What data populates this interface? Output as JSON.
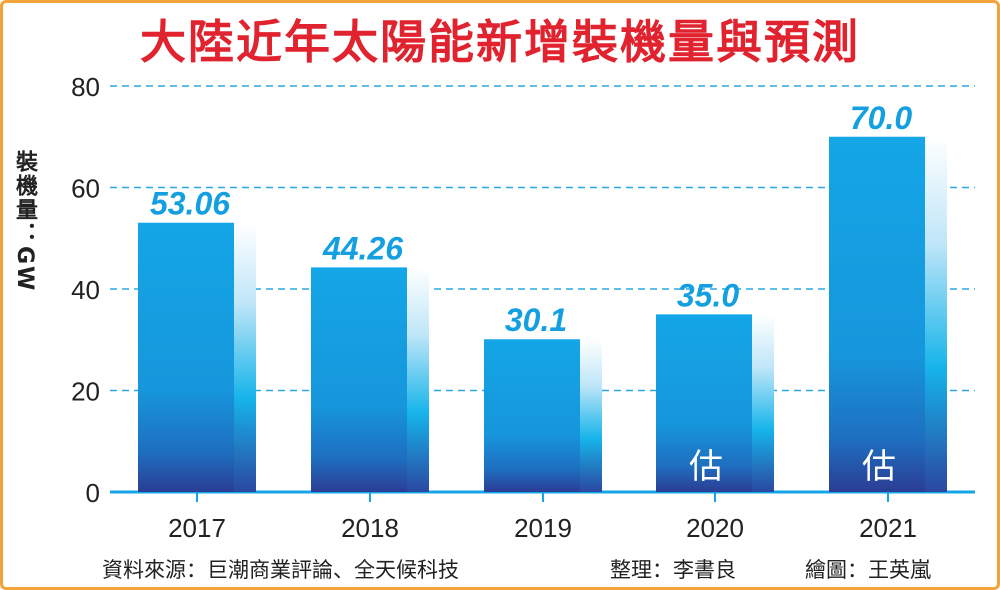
{
  "chart_data": {
    "type": "bar",
    "title": "大陸近年太陽能新增裝機量與預測",
    "ylabel": "裝機量：GW",
    "xlabel": "",
    "categories": [
      "2017",
      "2018",
      "2019",
      "2020",
      "2021"
    ],
    "values": [
      53.06,
      44.26,
      30.1,
      35.0,
      70.0
    ],
    "value_labels": [
      "53.06",
      "44.26",
      "30.1",
      "35.0",
      "70.0"
    ],
    "bar_notes": [
      "",
      "",
      "",
      "估",
      "估"
    ],
    "ylim": [
      0,
      80
    ],
    "yticks": [
      "0",
      "20",
      "40",
      "60",
      "80"
    ],
    "grid": true,
    "legend": "none",
    "colors": {
      "bar_top": "#14a6e6",
      "bar_bottom": "#2b3d94",
      "value_label": "#14a0e0",
      "grid": "#2aa8df",
      "axis": "#14a6e6",
      "title": "#e0232e",
      "frame": "#f2a33a"
    }
  },
  "footer": {
    "source": "資料來源：巨潮商業評論、全天候科技",
    "compiled_by": "整理：李書良",
    "graphic_by": "繪圖：王英嵐"
  }
}
